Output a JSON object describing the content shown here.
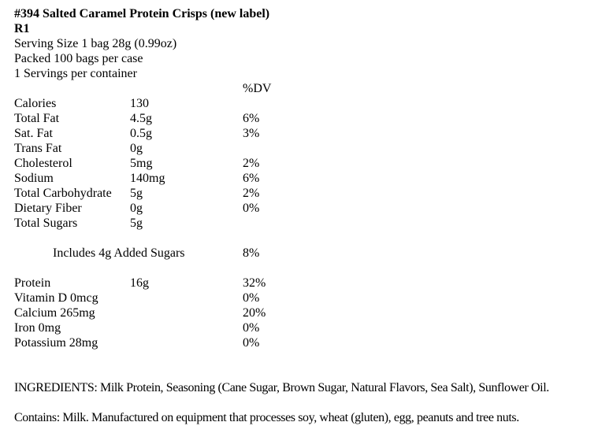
{
  "header": {
    "title": "#394 Salted Caramel Protein Crisps (new label)",
    "revision": "R1",
    "serving_size": "Serving Size 1 bag 28g (0.99oz)",
    "packed": "Packed 100 bags per case",
    "servings_per_container": "1 Servings per container"
  },
  "nutrition": {
    "dv_header": "%DV",
    "main_rows": [
      {
        "label": "Calories",
        "amount": "130",
        "dv": ""
      },
      {
        "label": "Total Fat",
        "amount": "4.5g",
        "dv": "6%"
      },
      {
        "label": "Sat. Fat",
        "amount": "0.5g",
        "dv": "3%"
      },
      {
        "label": "Trans Fat",
        "amount": "0g",
        "dv": ""
      },
      {
        "label": "Cholesterol",
        "amount": "5mg",
        "dv": "2%"
      },
      {
        "label": "Sodium",
        "amount": "140mg",
        "dv": "6%"
      },
      {
        "label": "Total Carbohydrate",
        "amount": "5g",
        "dv": "2%"
      },
      {
        "label": "Dietary Fiber",
        "amount": "0g",
        "dv": "0%"
      },
      {
        "label": "Total Sugars",
        "amount": "5g",
        "dv": ""
      }
    ],
    "added_sugars_row": {
      "label": "Includes 4g Added Sugars",
      "dv": "8%"
    },
    "bottom_rows": [
      {
        "label": "Protein",
        "amount": "16g",
        "dv": "32%"
      },
      {
        "label": "Vitamin D 0mcg",
        "amount": "",
        "dv": "0%"
      },
      {
        "label": "Calcium 265mg",
        "amount": "",
        "dv": "20%"
      },
      {
        "label": "Iron 0mg",
        "amount": "",
        "dv": "0%"
      },
      {
        "label": "Potassium 28mg",
        "amount": "",
        "dv": "0%"
      }
    ]
  },
  "footer": {
    "ingredients": "INGREDIENTS: Milk Protein, Seasoning (Cane Sugar, Brown Sugar, Natural Flavors, Sea Salt), Sunflower Oil.",
    "contains": "Contains: Milk. Manufactured on equipment that processes soy, wheat (gluten), egg, peanuts and tree nuts."
  }
}
